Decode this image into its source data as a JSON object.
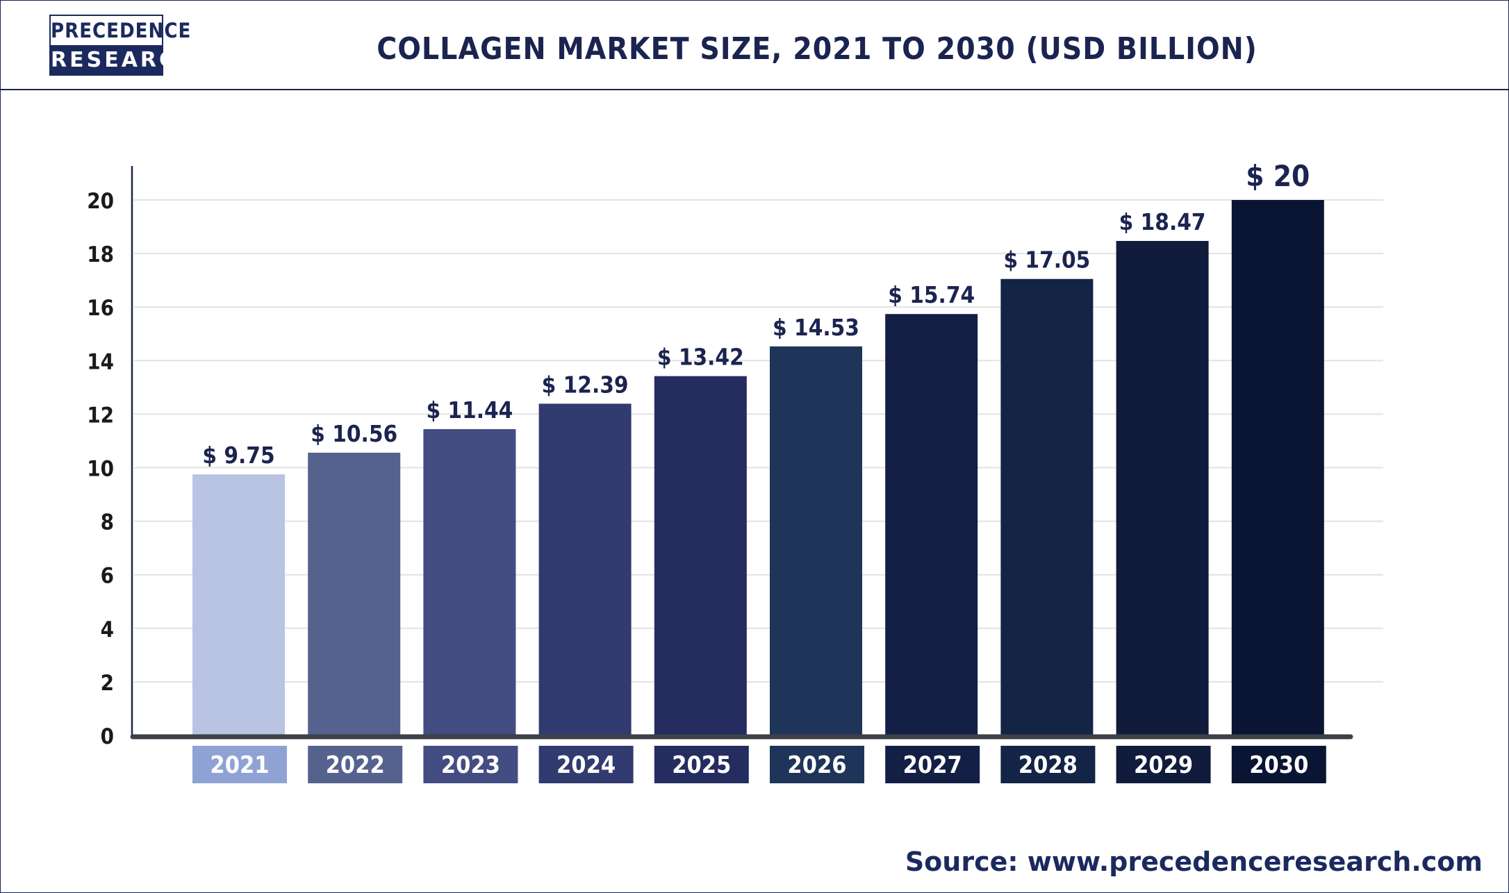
{
  "header": {
    "logo_line1": "PRECEDENCE",
    "logo_line2": "RESEARCH",
    "title": "COLLAGEN MARKET SIZE, 2021 TO 2030 (USD BILLION)"
  },
  "source": "Source: www.precedenceresearch.com",
  "chart_data": {
    "type": "bar",
    "title": "COLLAGEN MARKET SIZE, 2021 TO 2030 (USD BILLION)",
    "xlabel": "",
    "ylabel": "",
    "categories": [
      "2021",
      "2022",
      "2023",
      "2024",
      "2025",
      "2026",
      "2027",
      "2028",
      "2029",
      "2030"
    ],
    "values": [
      9.75,
      10.56,
      11.44,
      12.39,
      13.42,
      14.53,
      15.74,
      17.05,
      18.47,
      20
    ],
    "value_labels": [
      "$ 9.75",
      "$ 10.56",
      "$ 11.44",
      "$ 12.39",
      "$ 13.42",
      "$ 14.53",
      "$ 15.74",
      "$ 17.05",
      "$ 18.47",
      "$ 20"
    ],
    "ylim": [
      0,
      20
    ],
    "yticks": [
      0,
      2,
      4,
      6,
      8,
      10,
      12,
      14,
      16,
      18,
      20
    ],
    "grid": true,
    "legend": "none",
    "bar_colors": [
      "#b9c4e3",
      "#56628e",
      "#434d82",
      "#323b70",
      "#252c5f",
      "#1f3459",
      "#131f45",
      "#142446",
      "#111c3c",
      "#0a1433"
    ],
    "category_label_colors": [
      "#8ea3d3",
      "#56628e",
      "#434d82",
      "#323b70",
      "#252c5f",
      "#1f3459",
      "#131f45",
      "#142446",
      "#111c3c",
      "#0a1433"
    ]
  }
}
